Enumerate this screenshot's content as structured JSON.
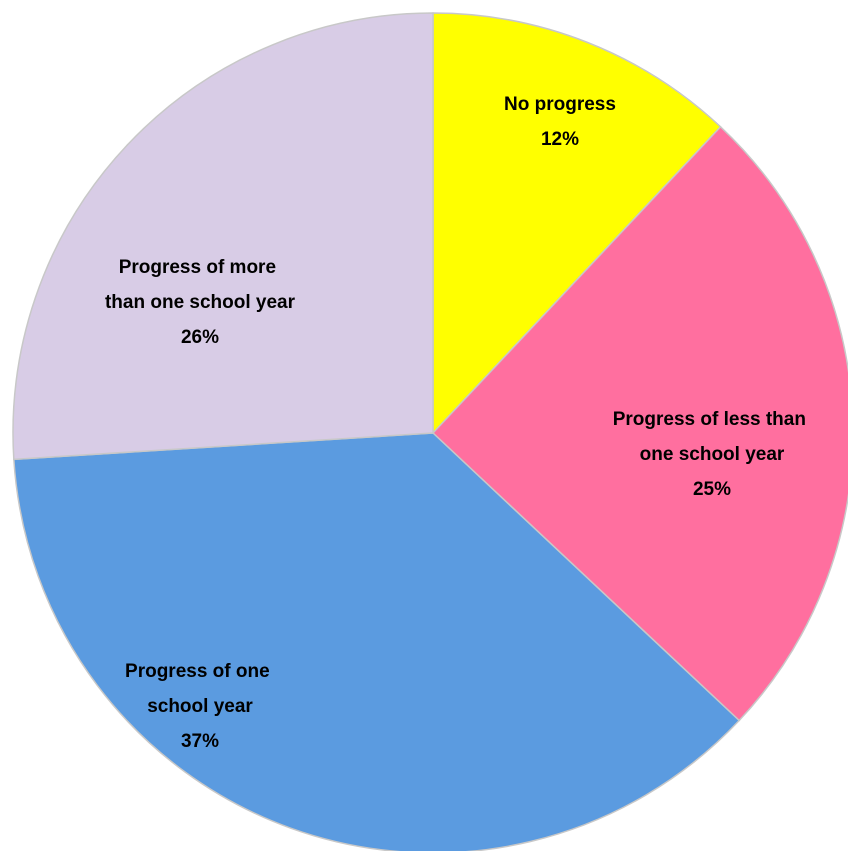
{
  "chart_data": {
    "type": "pie",
    "categories": [
      "No progress",
      "Progress of less than one school year",
      "Progress of one school year",
      "Progress of more than one school year"
    ],
    "values": [
      12,
      25,
      37,
      26
    ],
    "value_labels": [
      "12%",
      "25%",
      "37%",
      "26%"
    ],
    "colors": [
      "#ffff00",
      "#ff6f9f",
      "#5b9be0",
      "#d8cce6"
    ]
  }
}
